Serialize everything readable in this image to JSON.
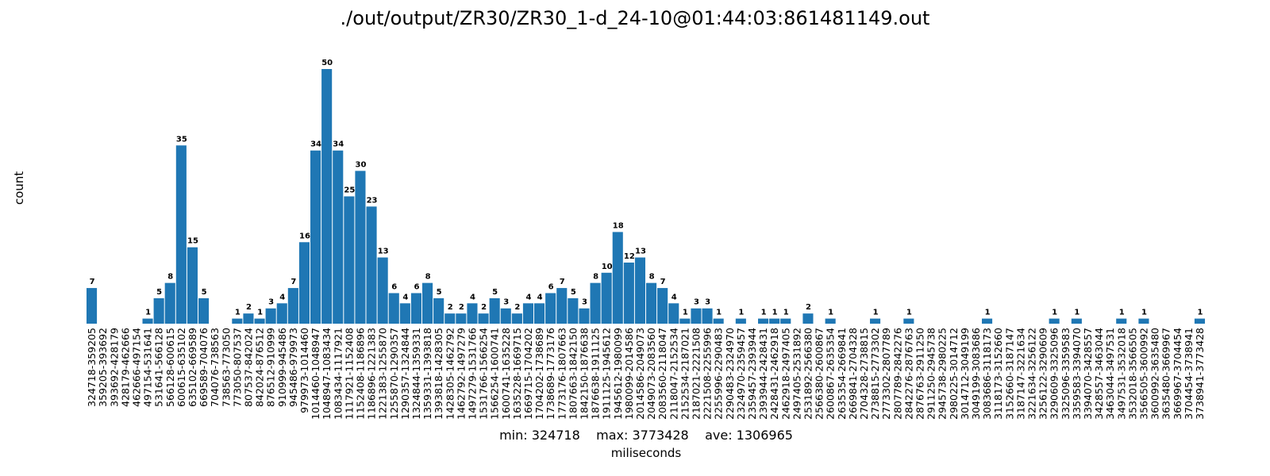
{
  "chart_data": {
    "type": "bar",
    "title": "./out/output/ZR30/ZR30_1-d_24-10@01:44:03:861481149.out",
    "xlabel": "miliseconds",
    "ylabel": "count",
    "stats": "min: 324718    max: 3773428    ave: 1306965",
    "ylim": [
      0,
      52.5
    ],
    "categories": [
      "324718-359205",
      "359205-393692",
      "393692-428179",
      "428179-462666",
      "462666-497154",
      "497154-531641",
      "531641-566128",
      "566128-600615",
      "600615-635102",
      "635102-669589",
      "669589-704076",
      "704076-738563",
      "738563-773050",
      "773050-807537",
      "807537-842024",
      "842024-876512",
      "876512-910999",
      "910999-945486",
      "945486-979973",
      "979973-1014460",
      "1014460-1048947",
      "1048947-1083434",
      "1083434-1117921",
      "1117921-1152408",
      "1152408-1186896",
      "1186896-1221383",
      "1221383-1255870",
      "1255870-1290357",
      "1290357-1324844",
      "1324844-1359331",
      "1359331-1393818",
      "1393818-1428305",
      "1428305-1462792",
      "1462792-1497279",
      "1497279-1531766",
      "1531766-1566254",
      "1566254-1600741",
      "1600741-1635228",
      "1635228-1669715",
      "1669715-1704202",
      "1704202-1738689",
      "1738689-1773176",
      "1773176-1807663",
      "1807663-1842150",
      "1842150-1876638",
      "1876638-1911125",
      "1911125-1945612",
      "1945612-1980099",
      "1980099-2014586",
      "2014586-2049073",
      "2049073-2083560",
      "2083560-2118047",
      "2118047-2152534",
      "2152534-2187021",
      "2187021-2221508",
      "2221508-2255996",
      "2255996-2290483",
      "2290483-2324970",
      "2324970-2359457",
      "2359457-2393944",
      "2393944-2428431",
      "2428431-2462918",
      "2462918-2497405",
      "2497405-2531892",
      "2531892-2566380",
      "2566380-2600867",
      "2600867-2635354",
      "2635354-2669841",
      "2669841-2704328",
      "2704328-2738815",
      "2738815-2773302",
      "2773302-2807789",
      "2807789-2842276",
      "2842276-2876763",
      "2876763-2911250",
      "2911250-2945738",
      "2945738-2980225",
      "2980225-3014712",
      "3014712-3049199",
      "3049199-3083686",
      "3083686-3118173",
      "3118173-3152660",
      "3152660-3187147",
      "3187147-3221634",
      "3221634-3256122",
      "3256122-3290609",
      "3290609-3325096",
      "3325096-3359583",
      "3359583-3394070",
      "3394070-3428557",
      "3428557-3463044",
      "3463044-3497531",
      "3497531-3532018",
      "3532018-3566505",
      "3566505-3600992",
      "3600992-3635480",
      "3635480-3669967",
      "3669967-3704454",
      "3704454-3738941",
      "3738941-3773428"
    ],
    "values": [
      7,
      0,
      0,
      0,
      0,
      1,
      5,
      8,
      35,
      15,
      5,
      0,
      0,
      1,
      2,
      1,
      3,
      4,
      7,
      16,
      34,
      50,
      34,
      25,
      30,
      23,
      13,
      6,
      4,
      6,
      8,
      5,
      2,
      2,
      4,
      2,
      5,
      3,
      2,
      4,
      4,
      6,
      7,
      5,
      3,
      8,
      10,
      18,
      12,
      13,
      8,
      7,
      4,
      1,
      3,
      3,
      1,
      0,
      1,
      0,
      1,
      1,
      1,
      0,
      2,
      0,
      1,
      0,
      0,
      0,
      1,
      0,
      0,
      1,
      0,
      0,
      0,
      0,
      0,
      0,
      1,
      0,
      0,
      0,
      0,
      0,
      1,
      0,
      1,
      0,
      0,
      0,
      1,
      0,
      1,
      0,
      0,
      0,
      0,
      1
    ],
    "bar_color": "#1f77b4",
    "grid": false,
    "legend": "none"
  }
}
